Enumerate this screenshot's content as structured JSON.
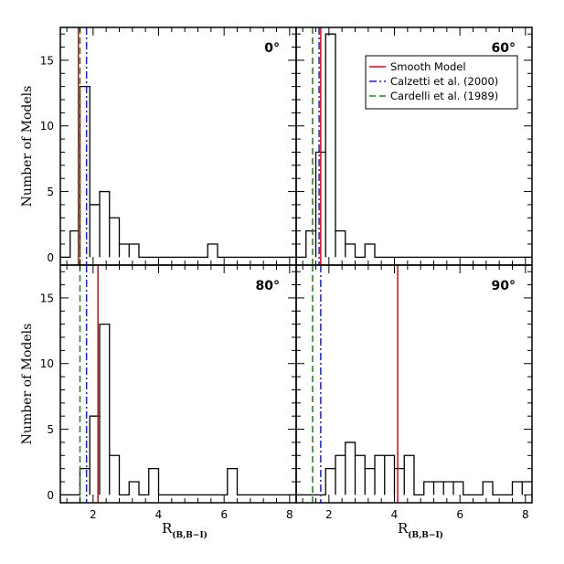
{
  "chart_data": [
    {
      "type": "histogram",
      "panel_label": "0°",
      "ylabel": "Number of Models",
      "xlabel": "",
      "xlim": [
        1.0,
        8.2
      ],
      "ylim": [
        -0.6,
        17.5
      ],
      "x_ticks": [
        "2",
        "4",
        "6",
        "8"
      ],
      "y_ticks": [
        "0",
        "5",
        "10",
        "15"
      ],
      "bin_edges": [
        1.0,
        1.3,
        1.6,
        1.9,
        2.2,
        2.5,
        2.8,
        3.1,
        3.4,
        3.7,
        4.0,
        4.3,
        4.6,
        4.9,
        5.2,
        5.5,
        5.8,
        6.1,
        6.4,
        6.7,
        7.0,
        7.3,
        7.6,
        7.9,
        8.2
      ],
      "counts": [
        0,
        2,
        13,
        4,
        5,
        3,
        1,
        1,
        0,
        0,
        0,
        0,
        0,
        0,
        0,
        1,
        0,
        0,
        0,
        0,
        0,
        0,
        0,
        0
      ],
      "lines": {
        "smooth_model": 1.55,
        "calzetti_2000": 1.8,
        "cardelli_1989": 1.6
      }
    },
    {
      "type": "histogram",
      "panel_label": "60°",
      "ylabel": "",
      "xlabel": "",
      "xlim": [
        1.0,
        8.2
      ],
      "ylim": [
        -0.6,
        17.5
      ],
      "x_ticks": [
        "2",
        "4",
        "6",
        "8"
      ],
      "y_ticks": [],
      "bin_edges": [
        1.0,
        1.3,
        1.6,
        1.9,
        2.2,
        2.5,
        2.8,
        3.1,
        3.4,
        3.7,
        4.0,
        4.3,
        4.6,
        4.9,
        5.2,
        5.5,
        5.8,
        6.1,
        6.4,
        6.7,
        7.0,
        7.3,
        7.6,
        7.9,
        8.2
      ],
      "counts": [
        0,
        2,
        8,
        17,
        2,
        1,
        0,
        1,
        0,
        0,
        0,
        0,
        0,
        0,
        0,
        0,
        0,
        0,
        0,
        0,
        0,
        0,
        0,
        0
      ],
      "lines": {
        "smooth_model": 1.75,
        "calzetti_2000": 1.7,
        "cardelli_1989": 1.5
      }
    },
    {
      "type": "histogram",
      "panel_label": "80°",
      "ylabel": "Number of Models",
      "xlabel": "R(B,B−I)",
      "xlim": [
        1.0,
        8.2
      ],
      "ylim": [
        -0.6,
        17.5
      ],
      "x_ticks": [
        "2",
        "4",
        "6",
        "8"
      ],
      "y_ticks": [
        "0",
        "5",
        "10",
        "15"
      ],
      "bin_edges": [
        1.0,
        1.3,
        1.6,
        1.9,
        2.2,
        2.5,
        2.8,
        3.1,
        3.4,
        3.7,
        4.0,
        4.3,
        4.6,
        4.9,
        5.2,
        5.5,
        5.8,
        6.1,
        6.4,
        6.7,
        7.0,
        7.3,
        7.6,
        7.9,
        8.2
      ],
      "counts": [
        0,
        0,
        2,
        6,
        13,
        3,
        0,
        1,
        0,
        2,
        0,
        0,
        0,
        0,
        0,
        0,
        0,
        2,
        0,
        0,
        0,
        0,
        0,
        0
      ],
      "lines": {
        "smooth_model": 2.15,
        "calzetti_2000": 1.8,
        "cardelli_1989": 1.6
      }
    },
    {
      "type": "histogram",
      "panel_label": "90°",
      "ylabel": "",
      "xlabel": "R(B,B−I)",
      "xlim": [
        1.0,
        8.2
      ],
      "ylim": [
        -0.6,
        17.5
      ],
      "x_ticks": [
        "2",
        "4",
        "6",
        "8"
      ],
      "y_ticks": [],
      "bin_edges": [
        1.0,
        1.3,
        1.6,
        1.9,
        2.2,
        2.5,
        2.8,
        3.1,
        3.4,
        3.7,
        4.0,
        4.3,
        4.6,
        4.9,
        5.2,
        5.5,
        5.8,
        6.1,
        6.4,
        6.7,
        7.0,
        7.3,
        7.6,
        7.9,
        8.2
      ],
      "counts": [
        0,
        0,
        0,
        2,
        3,
        4,
        3,
        2,
        3,
        3,
        2,
        3,
        0,
        1,
        1,
        1,
        1,
        0,
        0,
        1,
        0,
        0,
        1,
        1
      ],
      "lines": {
        "smooth_model": 4.1,
        "calzetti_2000": 1.75,
        "cardelli_1989": 1.5
      }
    }
  ],
  "legend": {
    "entries": [
      {
        "key": "smooth_model",
        "label": "Smooth Model",
        "color": "#e8000b",
        "dash": "solid"
      },
      {
        "key": "calzetti_2000",
        "label": "Calzetti et al. (2000)",
        "color": "#1f1fd1",
        "dash": "dashdot"
      },
      {
        "key": "cardelli_1989",
        "label": "Cardelli et al. (1989)",
        "color": "#118a11",
        "dash": "dashed"
      }
    ]
  },
  "xlabel_main": "R",
  "xlabel_sub": "(B,B−I)"
}
